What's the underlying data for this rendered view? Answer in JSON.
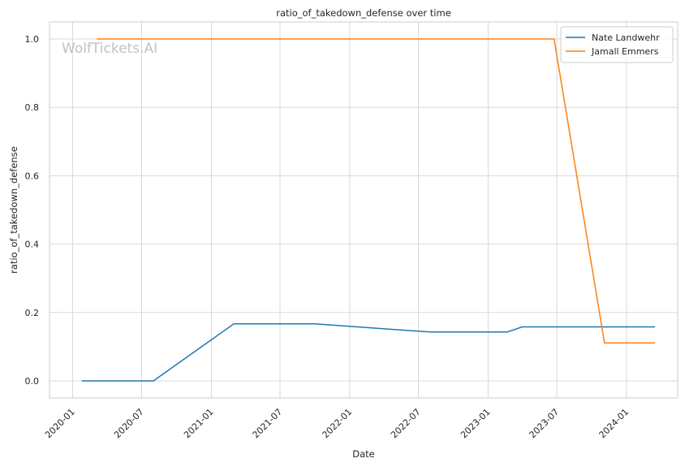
{
  "watermark": "WolfTickets.AI",
  "chart_data": {
    "type": "line",
    "title": "ratio_of_takedown_defense over time",
    "xlabel": "Date",
    "ylabel": "ratio_of_takedown_defense",
    "x_ticks": [
      "2020-01",
      "2020-07",
      "2021-01",
      "2021-07",
      "2022-01",
      "2022-07",
      "2023-01",
      "2023-07",
      "2024-01"
    ],
    "y_ticks": [
      "0.0",
      "0.2",
      "0.4",
      "0.6",
      "0.8",
      "1.0"
    ],
    "xlim": [
      "2019-11-01",
      "2024-05-15"
    ],
    "ylim": [
      -0.05,
      1.05
    ],
    "grid": true,
    "legend_position": "top-right",
    "series": [
      {
        "name": "Nate Landwehr",
        "color": "#1f77b4",
        "x": [
          "2020-01-25",
          "2020-08-01",
          "2021-03-01",
          "2021-10-01",
          "2022-08-01",
          "2023-02-20",
          "2023-04-01",
          "2024-03-16"
        ],
        "y": [
          0.0,
          0.0,
          0.1667,
          0.1667,
          0.1429,
          0.1429,
          0.1579,
          0.1579
        ]
      },
      {
        "name": "Jamall Emmers",
        "color": "#ff7f0e",
        "x": [
          "2020-03-05",
          "2023-06-24",
          "2023-11-04",
          "2024-03-16"
        ],
        "y": [
          1.0,
          1.0,
          0.1111,
          0.1111
        ]
      }
    ]
  }
}
